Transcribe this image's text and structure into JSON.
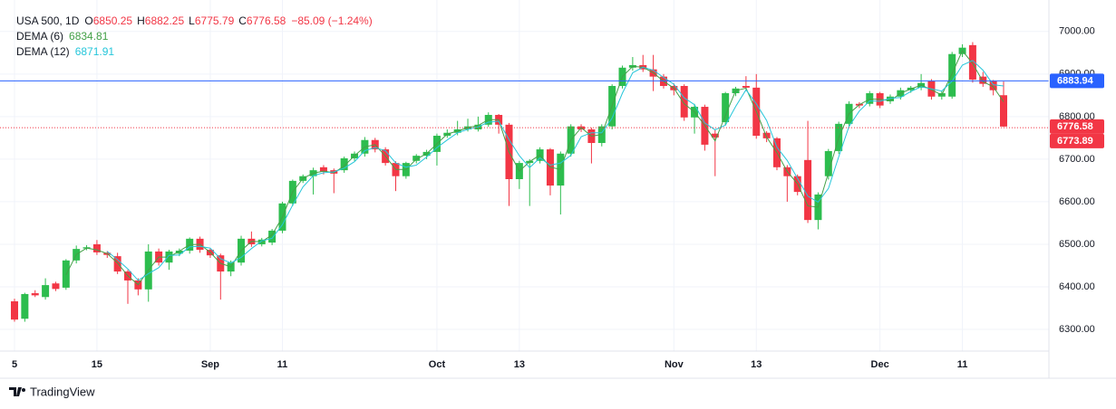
{
  "branding": "TradingView",
  "chart_data": {
    "type": "candlestick",
    "title": "USA 500, 1D",
    "ohlc_keys": [
      "O",
      "H",
      "L",
      "C"
    ],
    "change": "−85.09 (−1.24%)",
    "up_color": "#2dbd4e",
    "down_color": "#f23645",
    "categories": [
      "5",
      null,
      null,
      null,
      null,
      null,
      null,
      null,
      "15",
      null,
      null,
      null,
      null,
      null,
      null,
      null,
      null,
      null,
      null,
      "Sep",
      null,
      null,
      null,
      null,
      null,
      null,
      "11",
      null,
      null,
      null,
      null,
      null,
      null,
      null,
      null,
      null,
      null,
      null,
      null,
      null,
      null,
      "Oct",
      null,
      null,
      null,
      null,
      null,
      null,
      null,
      "13",
      null,
      null,
      null,
      null,
      null,
      null,
      null,
      null,
      null,
      null,
      null,
      null,
      null,
      null,
      "Nov",
      null,
      null,
      null,
      null,
      null,
      null,
      null,
      "13",
      null,
      null,
      null,
      null,
      null,
      null,
      null,
      null,
      null,
      null,
      null,
      "Dec",
      null,
      null,
      null,
      null,
      null,
      null,
      null,
      "11",
      null,
      null,
      null,
      null
    ],
    "open": [
      6366,
      6325,
      6385,
      6376,
      6408,
      6398,
      6462,
      6490,
      6500,
      6480,
      6472,
      6436,
      6415,
      6394,
      6483,
      6457,
      6478,
      6485,
      6513,
      6487,
      6474,
      6436,
      6457,
      6513,
      6500,
      6504,
      6532,
      6596,
      6649,
      6660,
      6681,
      6674,
      6674,
      6702,
      6713,
      6745,
      6723,
      6691,
      6660,
      6696,
      6708,
      6717,
      6755,
      6762,
      6770,
      6770,
      6781,
      6804,
      6781,
      6653,
      6691,
      6696,
      6723,
      6638,
      6713,
      6777,
      6770,
      6738,
      6777,
      6872,
      6915,
      6921,
      6911,
      6894,
      6872,
      6872,
      6798,
      6823,
      6760,
      6787,
      6855,
      6872,
      6868,
      6762,
      6749,
      6681,
      6660,
      6698,
      6557,
      6660,
      6719,
      6783,
      6830,
      6830,
      6855,
      6836,
      6847,
      6862,
      6868,
      6883,
      6847,
      6847,
      6947,
      6968,
      6894,
      6883,
      6850.25
    ],
    "high": [
      6372,
      6386,
      6392,
      6420,
      6412,
      6465,
      6497,
      6498,
      6510,
      6484,
      6480,
      6440,
      6420,
      6500,
      6490,
      6487,
      6490,
      6516,
      6518,
      6490,
      6478,
      6462,
      6520,
      6530,
      6515,
      6536,
      6600,
      6652,
      6664,
      6680,
      6686,
      6678,
      6706,
      6718,
      6752,
      6750,
      6728,
      6695,
      6694,
      6712,
      6722,
      6760,
      6770,
      6790,
      6795,
      6800,
      6810,
      6806,
      6785,
      6696,
      6700,
      6728,
      6726,
      6718,
      6782,
      6782,
      6774,
      6782,
      6876,
      6920,
      6940,
      6945,
      6945,
      6900,
      6878,
      6876,
      6830,
      6828,
      6770,
      6858,
      6870,
      6895,
      6900,
      6766,
      6752,
      6686,
      6664,
      6790,
      6622,
      6724,
      6788,
      6836,
      6834,
      6860,
      6858,
      6852,
      6868,
      6872,
      6900,
      6888,
      6860,
      6952,
      6970,
      6975,
      6905,
      6886,
      6882.25
    ],
    "low": [
      6318,
      6318,
      6376,
      6370,
      6390,
      6393,
      6455,
      6486,
      6475,
      6468,
      6430,
      6360,
      6380,
      6365,
      6450,
      6440,
      6472,
      6478,
      6480,
      6468,
      6370,
      6425,
      6450,
      6494,
      6495,
      6498,
      6526,
      6590,
      6644,
      6617,
      6664,
      6620,
      6668,
      6696,
      6706,
      6716,
      6685,
      6625,
      6654,
      6690,
      6700,
      6685,
      6750,
      6756,
      6765,
      6765,
      6776,
      6760,
      6590,
      6630,
      6590,
      6690,
      6615,
      6570,
      6706,
      6764,
      6690,
      6730,
      6770,
      6866,
      6908,
      6905,
      6860,
      6866,
      6850,
      6790,
      6760,
      6720,
      6660,
      6780,
      6848,
      6860,
      6748,
      6740,
      6674,
      6600,
      6615,
      6550,
      6535,
      6652,
      6712,
      6776,
      6820,
      6824,
      6820,
      6830,
      6840,
      6856,
      6862,
      6840,
      6840,
      6842,
      6940,
      6880,
      6870,
      6850,
      6775.79
    ],
    "close": [
      6323,
      6383,
      6380,
      6404,
      6395,
      6462,
      6489,
      6493,
      6481,
      6475,
      6436,
      6415,
      6394,
      6483,
      6457,
      6483,
      6485,
      6513,
      6487,
      6474,
      6436,
      6457,
      6513,
      6500,
      6511,
      6532,
      6596,
      6649,
      6660,
      6674,
      6670,
      6666,
      6702,
      6713,
      6745,
      6723,
      6691,
      6660,
      6691,
      6708,
      6717,
      6755,
      6762,
      6770,
      6777,
      6781,
      6804,
      6781,
      6653,
      6691,
      6696,
      6723,
      6638,
      6713,
      6777,
      6770,
      6738,
      6777,
      6872,
      6915,
      6921,
      6911,
      6894,
      6872,
      6862,
      6798,
      6823,
      6734,
      6751,
      6855,
      6866,
      6868,
      6755,
      6749,
      6681,
      6660,
      6623,
      6557,
      6617,
      6719,
      6783,
      6830,
      6826,
      6855,
      6826,
      6847,
      6862,
      6868,
      6879,
      6847,
      6855,
      6947,
      6962,
      6887,
      6877,
      6862,
      6776.58
    ],
    "series": [
      {
        "name": "DEMA (6)",
        "color": "#43a047",
        "values": [
          null,
          null,
          null,
          null,
          null,
          6428,
          6476,
          6491,
          6487,
          6478,
          6456,
          6426,
          6405,
          6439,
          6470,
          6470,
          6484,
          6499,
          6500,
          6481,
          6455,
          6447,
          6485,
          6507,
          6506,
          6522,
          6564,
          6623,
          6655,
          6667,
          6672,
          6668,
          6684,
          6708,
          6729,
          6734,
          6707,
          6676,
          6676,
          6700,
          6713,
          6736,
          6759,
          6766,
          6774,
          6779,
          6793,
          6793,
          6717,
          6672,
          6694,
          6710,
          6681,
          6676,
          6745,
          6774,
          6754,
          6758,
          6825,
          6894,
          6918,
          6916,
          6903,
          6883,
          6867,
          6830,
          6811,
          6779,
          6743,
          6803,
          6861,
          6867,
          6812,
          6752,
          6715,
          6671,
          6642,
          6590,
          6587,
          6668,
          6751,
          6807,
          6828,
          6841,
          6841,
          6837,
          6855,
          6865,
          6874,
          6863,
          6851,
          6901,
          6955,
          6925,
          6882,
          6870,
          6834.81
        ]
      },
      {
        "name": "DEMA (12)",
        "color": "#26c6da",
        "values": [
          null,
          null,
          null,
          null,
          null,
          null,
          null,
          null,
          null,
          6483,
          6464,
          6442,
          6415,
          6431,
          6445,
          6474,
          6475,
          6494,
          6495,
          6491,
          6466,
          6456,
          6469,
          6490,
          6508,
          6514,
          6546,
          6592,
          6635,
          6661,
          6668,
          6670,
          6679,
          6694,
          6720,
          6727,
          6720,
          6691,
          6681,
          6686,
          6705,
          6727,
          6745,
          6762,
          6770,
          6776,
          6787,
          6789,
          6746,
          6708,
          6680,
          6703,
          6686,
          6691,
          6709,
          6753,
          6762,
          6762,
          6796,
          6855,
          6903,
          6916,
          6909,
          6892,
          6876,
          6844,
          6828,
          6785,
          6769,
          6780,
          6824,
          6863,
          6830,
          6791,
          6728,
          6697,
          6655,
          6613,
          6599,
          6631,
          6706,
          6777,
          6813,
          6837,
          6836,
          6843,
          6845,
          6859,
          6870,
          6865,
          6860,
          6883,
          6921,
          6932,
          6909,
          6875,
          6871.91
        ]
      }
    ],
    "price_lines": [
      {
        "value": 6883.94,
        "color": "#2962ff",
        "style": "solid"
      },
      {
        "value": 6773.89,
        "color": "#f23645",
        "style": "dotted"
      }
    ],
    "ylim": [
      6249,
      7074
    ],
    "yticks": [
      {
        "value": 6300,
        "label": "6300.00"
      },
      {
        "value": 6400,
        "label": "6400.00"
      },
      {
        "value": 6500,
        "label": "6500.00"
      },
      {
        "value": 6600,
        "label": "6600.00"
      },
      {
        "value": 6700,
        "label": "6700.00"
      },
      {
        "value": 6800,
        "label": "6800.00"
      },
      {
        "value": 6900,
        "label": "6900.00"
      },
      {
        "value": 7000,
        "label": "7000.00"
      }
    ],
    "grid": true
  }
}
